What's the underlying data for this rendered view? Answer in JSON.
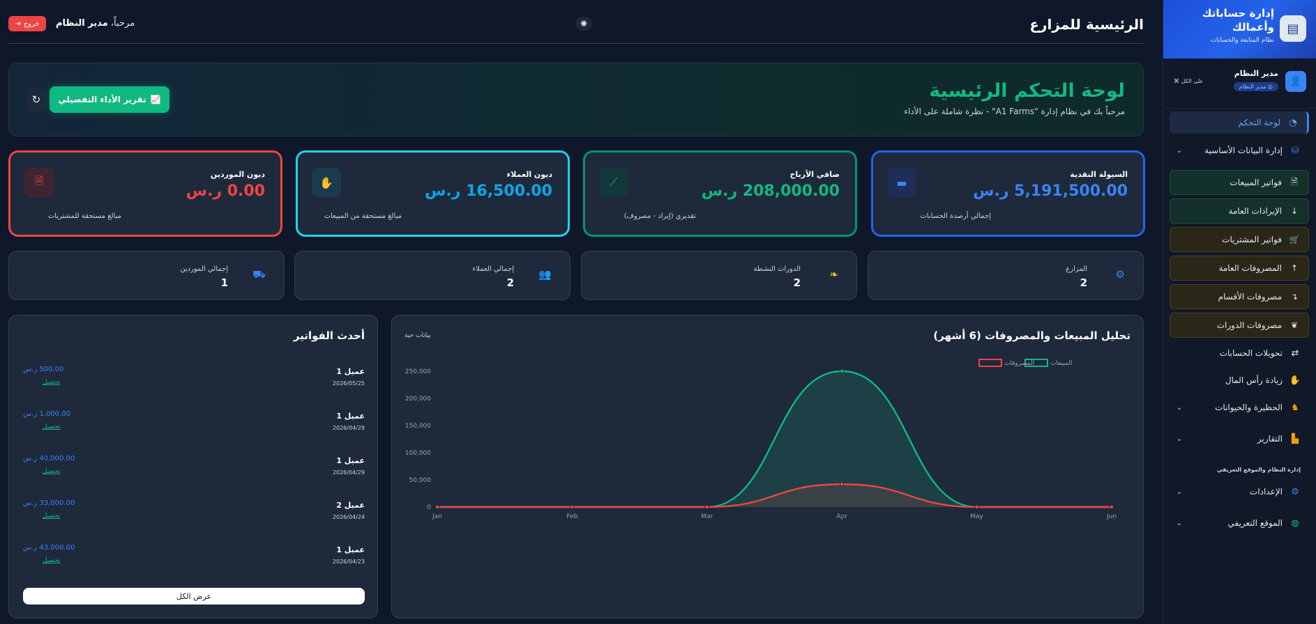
{
  "colors": {
    "blue": "#3b82f6",
    "green": "#10b981",
    "cyan": "#22d3ee",
    "red": "#ef4444",
    "amber": "#facc15",
    "bg": "#0f172a",
    "card": "#1e293b"
  },
  "brand": {
    "title": "إدارة حساباتك وأعمالك",
    "subtitle": "نظام المتابعة والحسابات",
    "logo_icon": "cash-register-icon"
  },
  "user": {
    "name": "مدير النظام",
    "badge": "مدير النظام",
    "scope": "على الكل"
  },
  "sidebar": {
    "items": [
      {
        "label": "لوحة التحكم",
        "icon": "gauge-icon"
      },
      {
        "label": "إدارة البيانات الأساسية",
        "icon": "database-icon"
      },
      {
        "label": "فواتير المبيعات",
        "icon": "file-invoice-icon"
      },
      {
        "label": "الإيرادات العامة",
        "icon": "arrow-down-icon"
      },
      {
        "label": "فواتير المشتريات",
        "icon": "cart-icon"
      },
      {
        "label": "المصروفات العامة",
        "icon": "arrow-up-icon"
      },
      {
        "label": "مصروفات الأقسام",
        "icon": "level-down-icon"
      },
      {
        "label": "مصروفات الدورات",
        "icon": "leaf-icon"
      },
      {
        "label": "تحويلات الحسابات",
        "icon": "exchange-icon"
      },
      {
        "label": "زيادة رأس المال",
        "icon": "hand-coin-icon"
      },
      {
        "label": "الحظيرة والحيوانات",
        "icon": "horse-icon"
      },
      {
        "label": "التقارير",
        "icon": "chart-icon"
      },
      {
        "label": "الإعدادات",
        "icon": "gear-icon"
      },
      {
        "label": "الموقع التعريفي",
        "icon": "globe-icon"
      }
    ],
    "section_title": "إدارة النظام والموقع التعريفي"
  },
  "header": {
    "title": "الرئيسية للمزارع",
    "welcome_prefix": "مرحباً،",
    "welcome_name": "مدير النظام",
    "logout_label": "خروج"
  },
  "hero": {
    "title": "لوحة التحكم الرئيسية",
    "subtitle": "مرحباً بك في نظام إدارة \"A1 Farms\" - نظرة شاملة على الأداء",
    "report_button": "تقرير الأداء التفصيلي"
  },
  "stats": [
    {
      "title": "السيولة النقدية",
      "value": "5,191,500.00 ر.س",
      "note": "إجمالي أرصدة الحسابات",
      "color": "#3b82f6",
      "icon": "wallet-icon"
    },
    {
      "title": "صافي الأرباح",
      "value": "208,000.00 ر.س",
      "note": "تقديري (إيراد - مصروف)",
      "color": "#10b981",
      "icon": "trend-up-icon"
    },
    {
      "title": "ديون العملاء",
      "value": "16,500.00 ر.س",
      "note": "مبالغ مستحقة من المبيعات",
      "color": "#22d3ee",
      "icon": "hand-holding-icon"
    },
    {
      "title": "ديون الموردين",
      "value": "0.00 ر.س",
      "note": "مبالغ مستحقة للمشتريات",
      "color": "#ef4444",
      "icon": "invoice-dollar-icon"
    }
  ],
  "counts": [
    {
      "label": "المزارع",
      "value": "2",
      "icon": "tractor-icon",
      "color": "#3b82f6"
    },
    {
      "label": "الدورات النشطة",
      "value": "2",
      "icon": "seedling-icon",
      "color": "#facc15"
    },
    {
      "label": "إجمالي العملاء",
      "value": "2",
      "icon": "users-icon",
      "color": "#10b981"
    },
    {
      "label": "إجمالي الموردين",
      "value": "1",
      "icon": "truck-icon",
      "color": "#3b82f6"
    }
  ],
  "chart_panel": {
    "title": "تحليل المبيعات والمصروفات (6 أشهر)",
    "live_label": "بيانات حية"
  },
  "chart_data": {
    "type": "area",
    "categories": [
      "Jan",
      "Feb",
      "Mar",
      "Apr",
      "May",
      "Jun"
    ],
    "series": [
      {
        "name": "المبيعات",
        "values": [
          0,
          0,
          0,
          250000,
          0,
          0
        ],
        "color": "#10b981"
      },
      {
        "name": "المصروفات",
        "values": [
          0,
          0,
          0,
          42000,
          0,
          0
        ],
        "color": "#ef4444"
      }
    ],
    "ylim": [
      0,
      250000
    ],
    "yticks": [
      "0",
      "50,000",
      "100,000",
      "150,000",
      "200,000",
      "250,000"
    ],
    "legend": "top-right",
    "grid": false
  },
  "invoices": {
    "title": "أحدث الفواتير",
    "collect_label": "تحصيل",
    "view_all": "عرض الكل",
    "rows": [
      {
        "client": "عميل 1",
        "date": "2026/05/25",
        "amount": "500.00 ر.س"
      },
      {
        "client": "عميل 1",
        "date": "2026/04/29",
        "amount": "1,000.00 ر.س"
      },
      {
        "client": "عميل 1",
        "date": "2026/04/29",
        "amount": "40,000.00 ر.س"
      },
      {
        "client": "عميل 2",
        "date": "2026/04/24",
        "amount": "33,000.00 ر.س"
      },
      {
        "client": "عميل 1",
        "date": "2026/04/23",
        "amount": "43,000.00 ر.س"
      }
    ]
  }
}
